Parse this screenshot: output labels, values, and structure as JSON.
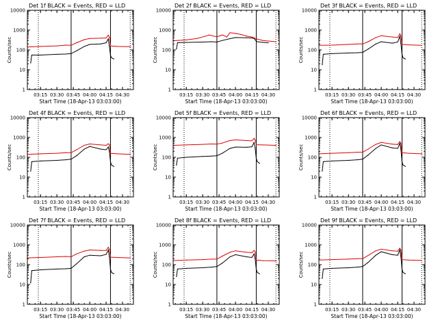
{
  "figure": {
    "background": "#ffffff",
    "axis_color": "#000000"
  },
  "chart_data": [
    {
      "type": "line",
      "title": "Det 1f BLACK = Events, RED = LLD",
      "xlabel": "Start Time (18-Apr-13 03:03:00)",
      "ylabel": "Counts/sec",
      "x_ticks": [
        "03:15",
        "03:30",
        "03:45",
        "04:00",
        "04:15",
        "04:30"
      ],
      "xlim": [
        "03:03",
        "04:40"
      ],
      "y_scale": "log",
      "ylim": [
        1,
        10000
      ],
      "y_ticks": [
        "1",
        "10",
        "100",
        "1000",
        "10000"
      ],
      "dotted_markers": [
        "03:13",
        "04:37"
      ],
      "solid_markers": [
        "03:43",
        "04:19"
      ],
      "series": [
        {
          "name": "Events",
          "color": "#000000",
          "x": [
            "03:06",
            "03:07",
            "03:15",
            "03:30",
            "03:38",
            "03:43",
            "03:48",
            "03:55",
            "04:00",
            "04:10",
            "04:15",
            "04:17",
            "04:18",
            "04:19",
            "04:20",
            "04:22"
          ],
          "y": [
            22,
            55,
            55,
            60,
            62,
            65,
            90,
            150,
            190,
            200,
            230,
            360,
            150,
            55,
            40,
            35
          ]
        },
        {
          "name": "LLD",
          "color": "#dd0000",
          "x": [
            "03:03",
            "03:15",
            "03:30",
            "03:38",
            "03:43",
            "03:48",
            "03:55",
            "04:00",
            "04:10",
            "04:15",
            "04:17",
            "04:18",
            "04:19",
            "04:25",
            "04:37"
          ],
          "y": [
            140,
            150,
            160,
            175,
            170,
            230,
            330,
            380,
            390,
            400,
            560,
            430,
            160,
            150,
            145
          ]
        }
      ]
    },
    {
      "type": "line",
      "title": "Det 2f BLACK = Events, RED = LLD",
      "xlabel": "Start Time (18-Apr-13 03:03:00)",
      "ylabel": "Counts/sec",
      "x_ticks": [
        "03:15",
        "03:30",
        "03:45",
        "04:00",
        "04:15",
        "04:30"
      ],
      "xlim": [
        "03:03",
        "04:40"
      ],
      "y_scale": "log",
      "ylim": [
        1,
        10000
      ],
      "y_ticks": [
        "1",
        "10",
        "100",
        "1000",
        "10000"
      ],
      "dotted_markers": [
        "03:13",
        "04:37"
      ],
      "solid_markers": [
        "03:43",
        "04:19"
      ],
      "series": [
        {
          "name": "Events",
          "color": "#000000",
          "x": [
            "03:06",
            "03:07",
            "03:15",
            "03:30",
            "03:38",
            "03:43",
            "03:48",
            "03:55",
            "04:00",
            "04:10",
            "04:15",
            "04:17",
            "04:18",
            "04:19",
            "04:20",
            "04:25",
            "04:30"
          ],
          "y": [
            110,
            230,
            240,
            250,
            260,
            250,
            300,
            370,
            420,
            410,
            400,
            380,
            330,
            280,
            260,
            240,
            230
          ]
        },
        {
          "name": "LLD",
          "color": "#dd0000",
          "x": [
            "03:03",
            "03:15",
            "03:25",
            "03:32",
            "03:36",
            "03:43",
            "03:48",
            "03:52",
            "03:55",
            "04:00",
            "04:05",
            "04:10",
            "04:15",
            "04:20",
            "04:25",
            "04:30",
            "04:37"
          ],
          "y": [
            290,
            320,
            380,
            480,
            570,
            460,
            570,
            450,
            740,
            680,
            600,
            500,
            450,
            350,
            300,
            280,
            260
          ]
        }
      ]
    },
    {
      "type": "line",
      "title": "Det 3f BLACK = Events, RED = LLD",
      "xlabel": "Start Time (18-Apr-13 03:03:00)",
      "ylabel": "Counts/sec",
      "x_ticks": [
        "03:15",
        "03:30",
        "03:45",
        "04:00",
        "04:15",
        "04:30"
      ],
      "xlim": [
        "03:03",
        "04:40"
      ],
      "y_scale": "log",
      "ylim": [
        1,
        10000
      ],
      "y_ticks": [
        "1",
        "10",
        "100",
        "1000",
        "10000"
      ],
      "dotted_markers": [
        "03:13",
        "04:37"
      ],
      "solid_markers": [
        "03:43",
        "04:19"
      ],
      "series": [
        {
          "name": "Events",
          "color": "#000000",
          "x": [
            "03:06",
            "03:07",
            "03:15",
            "03:30",
            "03:38",
            "03:43",
            "03:48",
            "03:55",
            "04:00",
            "04:10",
            "04:15",
            "04:17",
            "04:18",
            "04:19",
            "04:20",
            "04:22"
          ],
          "y": [
            18,
            60,
            65,
            70,
            72,
            75,
            110,
            200,
            260,
            220,
            250,
            480,
            210,
            60,
            40,
            35
          ]
        },
        {
          "name": "LLD",
          "color": "#dd0000",
          "x": [
            "03:03",
            "03:15",
            "03:30",
            "03:38",
            "03:43",
            "03:48",
            "03:55",
            "04:00",
            "04:10",
            "04:15",
            "04:17",
            "04:18",
            "04:19",
            "04:25",
            "04:37"
          ],
          "y": [
            170,
            175,
            190,
            200,
            200,
            260,
            420,
            520,
            450,
            420,
            650,
            520,
            190,
            180,
            170
          ]
        }
      ]
    },
    {
      "type": "line",
      "title": "Det 4f BLACK = Events, RED = LLD",
      "xlabel": "Start Time (18-Apr-13 03:03:00)",
      "ylabel": "Counts/sec",
      "x_ticks": [
        "03:15",
        "03:30",
        "03:45",
        "04:00",
        "04:15",
        "04:30"
      ],
      "xlim": [
        "03:03",
        "04:40"
      ],
      "y_scale": "log",
      "ylim": [
        1,
        10000
      ],
      "y_ticks": [
        "1",
        "10",
        "100",
        "1000",
        "10000"
      ],
      "dotted_markers": [
        "03:13",
        "04:37"
      ],
      "solid_markers": [
        "03:43",
        "04:19"
      ],
      "series": [
        {
          "name": "Events",
          "color": "#000000",
          "x": [
            "03:06",
            "03:07",
            "03:15",
            "03:30",
            "03:38",
            "03:43",
            "03:48",
            "03:55",
            "04:00",
            "04:10",
            "04:15",
            "04:17",
            "04:18",
            "04:19",
            "04:20",
            "04:22"
          ],
          "y": [
            20,
            60,
            65,
            70,
            75,
            80,
            120,
            260,
            350,
            260,
            240,
            330,
            200,
            60,
            40,
            35
          ]
        },
        {
          "name": "LLD",
          "color": "#dd0000",
          "x": [
            "03:03",
            "03:15",
            "03:30",
            "03:38",
            "03:43",
            "03:48",
            "03:55",
            "04:00",
            "04:10",
            "04:15",
            "04:17",
            "04:18",
            "04:19",
            "04:25",
            "04:37"
          ],
          "y": [
            140,
            150,
            160,
            170,
            170,
            240,
            400,
            470,
            420,
            400,
            480,
            430,
            160,
            150,
            140
          ]
        }
      ]
    },
    {
      "type": "line",
      "title": "Det 5f BLACK = Events, RED = LLD",
      "xlabel": "Start Time (18-Apr-13 03:03:00)",
      "ylabel": "Counts/sec",
      "x_ticks": [
        "03:15",
        "03:30",
        "03:45",
        "04:00",
        "04:15",
        "04:30"
      ],
      "xlim": [
        "03:03",
        "04:40"
      ],
      "y_scale": "log",
      "ylim": [
        1,
        10000
      ],
      "y_ticks": [
        "1",
        "10",
        "100",
        "1000",
        "10000"
      ],
      "dotted_markers": [
        "03:13",
        "04:37"
      ],
      "solid_markers": [
        "03:43",
        "04:19"
      ],
      "series": [
        {
          "name": "Events",
          "color": "#000000",
          "x": [
            "03:06",
            "03:07",
            "03:15",
            "03:30",
            "03:38",
            "03:43",
            "03:48",
            "03:55",
            "04:00",
            "04:10",
            "04:15",
            "04:17",
            "04:18",
            "04:19",
            "04:20",
            "04:22"
          ],
          "y": [
            40,
            90,
            100,
            110,
            115,
            120,
            160,
            280,
            330,
            320,
            340,
            560,
            300,
            90,
            60,
            50
          ]
        },
        {
          "name": "LLD",
          "color": "#dd0000",
          "x": [
            "03:03",
            "03:15",
            "03:30",
            "03:38",
            "03:43",
            "03:48",
            "03:55",
            "04:00",
            "04:10",
            "04:15",
            "04:17",
            "04:18",
            "04:19",
            "04:25",
            "04:37"
          ],
          "y": [
            400,
            420,
            450,
            470,
            460,
            520,
            700,
            760,
            700,
            680,
            900,
            760,
            430,
            420,
            400
          ]
        }
      ]
    },
    {
      "type": "line",
      "title": "Det 6f BLACK = Events, RED = LLD",
      "xlabel": "Start Time (18-Apr-13 03:03:00)",
      "ylabel": "Counts/sec",
      "x_ticks": [
        "03:15",
        "03:30",
        "03:45",
        "04:00",
        "04:15",
        "04:30"
      ],
      "xlim": [
        "03:03",
        "04:40"
      ],
      "y_scale": "log",
      "ylim": [
        1,
        10000
      ],
      "y_ticks": [
        "1",
        "10",
        "100",
        "1000",
        "10000"
      ],
      "dotted_markers": [
        "03:13",
        "04:37"
      ],
      "solid_markers": [
        "03:43",
        "04:19"
      ],
      "series": [
        {
          "name": "Events",
          "color": "#000000",
          "x": [
            "03:06",
            "03:07",
            "03:15",
            "03:30",
            "03:38",
            "03:43",
            "03:48",
            "03:55",
            "04:00",
            "04:10",
            "04:15",
            "04:17",
            "04:18",
            "04:19",
            "04:20",
            "04:22"
          ],
          "y": [
            20,
            60,
            65,
            70,
            75,
            80,
            130,
            280,
            420,
            300,
            280,
            500,
            250,
            60,
            40,
            35
          ]
        },
        {
          "name": "LLD",
          "color": "#dd0000",
          "x": [
            "03:03",
            "03:15",
            "03:30",
            "03:38",
            "03:43",
            "03:48",
            "03:55",
            "04:00",
            "04:10",
            "04:15",
            "04:17",
            "04:18",
            "04:19",
            "04:25",
            "04:37"
          ],
          "y": [
            150,
            160,
            170,
            180,
            180,
            260,
            450,
            560,
            460,
            440,
            620,
            500,
            170,
            160,
            150
          ]
        }
      ]
    },
    {
      "type": "line",
      "title": "Det 7f BLACK = Events, RED = LLD",
      "xlabel": "Start Time (18-Apr-13 03:03:00)",
      "ylabel": "Counts/sec",
      "x_ticks": [
        "03:15",
        "03:30",
        "03:45",
        "04:00",
        "04:15",
        "04:30"
      ],
      "xlim": [
        "03:03",
        "04:40"
      ],
      "y_scale": "log",
      "ylim": [
        1,
        10000
      ],
      "y_ticks": [
        "1",
        "10",
        "100",
        "1000",
        "10000"
      ],
      "dotted_markers": [
        "03:13",
        "04:37"
      ],
      "solid_markers": [
        "03:43",
        "04:19"
      ],
      "series": [
        {
          "name": "Events",
          "color": "#000000",
          "x": [
            "03:06",
            "03:07",
            "03:15",
            "03:30",
            "03:38",
            "03:43",
            "03:48",
            "03:55",
            "04:00",
            "04:10",
            "04:15",
            "04:17",
            "04:18",
            "04:19",
            "04:20",
            "04:22"
          ],
          "y": [
            12,
            50,
            55,
            60,
            62,
            65,
            110,
            250,
            300,
            280,
            330,
            550,
            250,
            60,
            40,
            35
          ]
        },
        {
          "name": "LLD",
          "color": "#dd0000",
          "x": [
            "03:03",
            "03:15",
            "03:30",
            "03:38",
            "03:43",
            "03:48",
            "03:55",
            "04:00",
            "04:10",
            "04:15",
            "04:17",
            "04:18",
            "04:19",
            "04:25",
            "04:37"
          ],
          "y": [
            220,
            230,
            250,
            260,
            250,
            350,
            480,
            550,
            520,
            520,
            750,
            600,
            240,
            230,
            220
          ]
        }
      ]
    },
    {
      "type": "line",
      "title": "Det 8f BLACK = Events, RED = LLD",
      "xlabel": "Start Time (18-Apr-13 03:03:00)",
      "ylabel": "Counts/sec",
      "x_ticks": [
        "03:15",
        "03:30",
        "03:45",
        "04:00",
        "04:15",
        "04:30"
      ],
      "xlim": [
        "03:03",
        "04:40"
      ],
      "y_scale": "log",
      "ylim": [
        1,
        10000
      ],
      "y_ticks": [
        "1",
        "10",
        "100",
        "1000",
        "10000"
      ],
      "dotted_markers": [
        "03:13",
        "04:37"
      ],
      "solid_markers": [
        "03:43",
        "04:19"
      ],
      "series": [
        {
          "name": "Events",
          "color": "#000000",
          "x": [
            "03:06",
            "03:07",
            "03:15",
            "03:30",
            "03:38",
            "03:43",
            "03:48",
            "03:55",
            "04:00",
            "04:10",
            "04:15",
            "04:17",
            "04:18",
            "04:19",
            "04:20",
            "04:22"
          ],
          "y": [
            25,
            60,
            65,
            70,
            75,
            80,
            120,
            250,
            320,
            250,
            230,
            350,
            200,
            60,
            40,
            35
          ]
        },
        {
          "name": "LLD",
          "color": "#dd0000",
          "x": [
            "03:03",
            "03:15",
            "03:30",
            "03:38",
            "03:43",
            "03:48",
            "03:55",
            "04:00",
            "04:10",
            "04:15",
            "04:17",
            "04:18",
            "04:19",
            "04:25",
            "04:37"
          ],
          "y": [
            160,
            170,
            180,
            190,
            190,
            270,
            420,
            500,
            420,
            400,
            520,
            450,
            170,
            160,
            155
          ]
        }
      ]
    },
    {
      "type": "line",
      "title": "Det 9f BLACK = Events, RED = LLD",
      "xlabel": "Start Time (18-Apr-13 03:03:00)",
      "ylabel": "Counts/sec",
      "x_ticks": [
        "03:15",
        "03:30",
        "03:45",
        "04:00",
        "04:15",
        "04:30"
      ],
      "xlim": [
        "03:03",
        "04:40"
      ],
      "y_scale": "log",
      "ylim": [
        1,
        10000
      ],
      "y_ticks": [
        "1",
        "10",
        "100",
        "1000",
        "10000"
      ],
      "dotted_markers": [
        "03:13",
        "04:37"
      ],
      "solid_markers": [
        "03:43",
        "04:19"
      ],
      "series": [
        {
          "name": "Events",
          "color": "#000000",
          "x": [
            "03:06",
            "03:07",
            "03:15",
            "03:30",
            "03:38",
            "03:43",
            "03:48",
            "03:55",
            "04:00",
            "04:10",
            "04:15",
            "04:17",
            "04:18",
            "04:19",
            "04:20",
            "04:22"
          ],
          "y": [
            20,
            60,
            65,
            70,
            75,
            80,
            130,
            300,
            450,
            320,
            300,
            550,
            250,
            60,
            40,
            35
          ]
        },
        {
          "name": "LLD",
          "color": "#dd0000",
          "x": [
            "03:03",
            "03:15",
            "03:30",
            "03:38",
            "03:43",
            "03:48",
            "03:55",
            "04:00",
            "04:10",
            "04:15",
            "04:17",
            "04:18",
            "04:19",
            "04:25",
            "04:37"
          ],
          "y": [
            170,
            180,
            190,
            200,
            200,
            290,
            500,
            600,
            500,
            480,
            680,
            540,
            180,
            170,
            165
          ]
        }
      ]
    }
  ]
}
